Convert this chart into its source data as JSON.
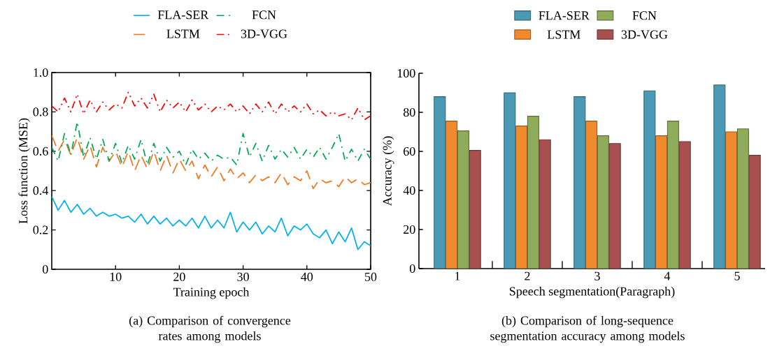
{
  "chart_data": [
    {
      "type": "line",
      "xlabel": "Training epoch",
      "ylabel": "Loss function (MSE)",
      "annotations": [
        "(a) Comparison of convergence rates among models"
      ],
      "legend": "top",
      "x": [
        0,
        1,
        2,
        3,
        4,
        5,
        6,
        7,
        8,
        9,
        10,
        11,
        12,
        13,
        14,
        15,
        16,
        17,
        18,
        19,
        20,
        21,
        22,
        23,
        24,
        25,
        26,
        27,
        28,
        29,
        30,
        31,
        32,
        33,
        34,
        35,
        36,
        37,
        38,
        39,
        40,
        41,
        42,
        43,
        44,
        45,
        46,
        47,
        48,
        49,
        50
      ],
      "xlim": [
        0,
        50
      ],
      "ylim": [
        0,
        1
      ],
      "xticks": [
        10,
        20,
        30,
        40,
        50
      ],
      "yticks": [
        0,
        0.2,
        0.4,
        0.6,
        0.8,
        {
          "value": 1,
          "label": "1.0"
        }
      ],
      "series": [
        {
          "name": "FLA-SER",
          "color": "#00b0f0",
          "line_style": "solid",
          "values": [
            0.37,
            0.3,
            0.35,
            0.29,
            0.33,
            0.28,
            0.31,
            0.27,
            0.29,
            0.27,
            0.28,
            0.26,
            0.27,
            0.24,
            0.28,
            0.23,
            0.27,
            0.23,
            0.26,
            0.22,
            0.25,
            0.22,
            0.26,
            0.21,
            0.27,
            0.21,
            0.25,
            0.21,
            0.29,
            0.19,
            0.24,
            0.2,
            0.24,
            0.18,
            0.22,
            0.19,
            0.26,
            0.17,
            0.22,
            0.2,
            0.23,
            0.18,
            0.16,
            0.2,
            0.13,
            0.19,
            0.14,
            0.21,
            0.1,
            0.14,
            0.12
          ]
        },
        {
          "name": "LSTM",
          "color": "#f07820",
          "line_style": "dashed",
          "values": [
            0.68,
            0.6,
            0.66,
            0.58,
            0.67,
            0.56,
            0.63,
            0.52,
            0.62,
            0.55,
            0.6,
            0.52,
            0.6,
            0.5,
            0.58,
            0.51,
            0.6,
            0.5,
            0.58,
            0.49,
            0.56,
            0.5,
            0.55,
            0.46,
            0.53,
            0.47,
            0.52,
            0.45,
            0.51,
            0.46,
            0.49,
            0.44,
            0.48,
            0.45,
            0.47,
            0.44,
            0.49,
            0.43,
            0.47,
            0.45,
            0.5,
            0.41,
            0.46,
            0.44,
            0.45,
            0.42,
            0.47,
            0.44,
            0.46,
            0.43,
            0.44
          ]
        },
        {
          "name": "FCN",
          "color": "#00a850",
          "line_style": "dashdot",
          "values": [
            0.62,
            0.55,
            0.69,
            0.58,
            0.75,
            0.57,
            0.67,
            0.56,
            0.66,
            0.55,
            0.64,
            0.54,
            0.63,
            0.56,
            0.66,
            0.53,
            0.64,
            0.55,
            0.62,
            0.57,
            0.6,
            0.53,
            0.61,
            0.56,
            0.59,
            0.55,
            0.58,
            0.56,
            0.57,
            0.53,
            0.69,
            0.57,
            0.64,
            0.55,
            0.63,
            0.56,
            0.61,
            0.57,
            0.62,
            0.56,
            0.61,
            0.57,
            0.62,
            0.56,
            0.62,
            0.69,
            0.55,
            0.61,
            0.55,
            0.61,
            0.56
          ]
        },
        {
          "name": "3D-VGG",
          "color": "#ff0000",
          "line_style": "dashdotdot",
          "values": [
            0.83,
            0.8,
            0.87,
            0.8,
            0.89,
            0.79,
            0.86,
            0.8,
            0.85,
            0.81,
            0.84,
            0.82,
            0.9,
            0.83,
            0.87,
            0.82,
            0.89,
            0.8,
            0.86,
            0.82,
            0.85,
            0.8,
            0.86,
            0.81,
            0.84,
            0.8,
            0.83,
            0.81,
            0.84,
            0.8,
            0.83,
            0.79,
            0.84,
            0.8,
            0.85,
            0.79,
            0.84,
            0.8,
            0.83,
            0.8,
            0.84,
            0.79,
            0.81,
            0.78,
            0.8,
            0.78,
            0.79,
            0.76,
            0.82,
            0.76,
            0.78
          ]
        }
      ]
    },
    {
      "type": "bar",
      "xlabel": "Speech segmentation(Paragraph)",
      "ylabel": "Accuracy (%)",
      "annotations": [
        "(b) Comparison of long-sequence segmentation accuracy among models"
      ],
      "legend": "top",
      "categories": [
        "1",
        "2",
        "3",
        "4",
        "5"
      ],
      "ylim": [
        0,
        100
      ],
      "yticks": [
        0,
        20,
        40,
        60,
        80,
        100
      ],
      "series": [
        {
          "name": "FLA-SER",
          "color": "#4a9ab5",
          "values": [
            88,
            90,
            88,
            91,
            94
          ]
        },
        {
          "name": "LSTM",
          "color": "#f08a2c",
          "values": [
            75.5,
            73,
            75.5,
            68,
            70
          ]
        },
        {
          "name": "FCN",
          "color": "#8fac5a",
          "values": [
            70.5,
            78,
            68,
            75.5,
            71.5
          ]
        },
        {
          "name": "3D-VGG",
          "color": "#a85050",
          "values": [
            60.5,
            66,
            64,
            65,
            58
          ]
        }
      ]
    }
  ]
}
